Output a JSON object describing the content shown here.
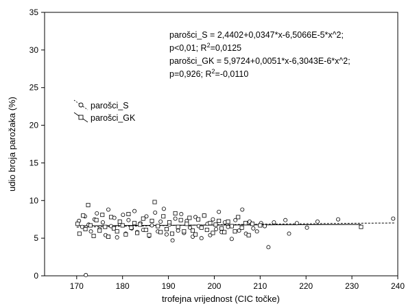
{
  "chart_data": {
    "type": "scatter",
    "title": "",
    "xlabel": "trofejna vrijednost (CIC točke)",
    "ylabel": "udio broja parožaka (%)",
    "xlim": [
      163,
      240
    ],
    "ylim": [
      0,
      35
    ],
    "x_ticks": [
      170,
      180,
      190,
      200,
      210,
      220,
      230,
      240
    ],
    "y_ticks": [
      0,
      5,
      10,
      15,
      20,
      25,
      30,
      35
    ],
    "grid": false,
    "legend_position": "upper-left",
    "annotation": {
      "line1": "parošci_S = 2,4402+0,0347*x-6,5066E-5*x^2;",
      "line2_pre": "p<0,01; R",
      "line2_sup": "2",
      "line2_post": "=0,0125",
      "line3": "parošci_GK = 5,9724+0,0051*x-6,3043E-6*x^2;",
      "line4_pre": "p=0,926; R",
      "line4_sup": "2",
      "line4_post": "=-0,0110"
    },
    "series": [
      {
        "name": "parošci_S",
        "marker": "circle",
        "line_style": "dashed",
        "fit": {
          "a": 2.4402,
          "b": 0.0347,
          "c": -6.5066e-05,
          "x_range": [
            170,
            239.5
          ]
        },
        "points": [
          [
            170.5,
            7.3
          ],
          [
            171.2,
            6.5
          ],
          [
            171.8,
            7.9
          ],
          [
            172.0,
            0.1
          ],
          [
            172.6,
            6.8
          ],
          [
            173.1,
            5.9
          ],
          [
            173.9,
            7.5
          ],
          [
            174.4,
            8.3
          ],
          [
            175.0,
            6.2
          ],
          [
            175.7,
            7.1
          ],
          [
            176.3,
            5.4
          ],
          [
            176.9,
            8.8
          ],
          [
            177.5,
            6.6
          ],
          [
            178.2,
            7.7
          ],
          [
            178.8,
            5.1
          ],
          [
            179.4,
            6.9
          ],
          [
            180.1,
            8.1
          ],
          [
            180.7,
            5.6
          ],
          [
            181.3,
            7.4
          ],
          [
            182.0,
            6.3
          ],
          [
            182.6,
            8.6
          ],
          [
            183.2,
            5.8
          ],
          [
            183.9,
            7.0
          ],
          [
            184.5,
            6.1
          ],
          [
            185.2,
            7.9
          ],
          [
            185.8,
            5.3
          ],
          [
            186.4,
            6.7
          ],
          [
            187.1,
            8.4
          ],
          [
            187.7,
            5.9
          ],
          [
            188.3,
            7.2
          ],
          [
            189.0,
            8.9
          ],
          [
            189.6,
            5.5
          ],
          [
            190.2,
            6.8
          ],
          [
            190.9,
            4.7
          ],
          [
            191.5,
            7.6
          ],
          [
            192.1,
            6.0
          ],
          [
            192.8,
            8.2
          ],
          [
            193.4,
            5.7
          ],
          [
            194.0,
            7.3
          ],
          [
            194.7,
            6.4
          ],
          [
            195.3,
            5.2
          ],
          [
            195.9,
            7.8
          ],
          [
            196.6,
            6.6
          ],
          [
            197.2,
            5.0
          ],
          [
            197.8,
            8.0
          ],
          [
            198.5,
            6.9
          ],
          [
            199.1,
            5.4
          ],
          [
            199.7,
            7.5
          ],
          [
            200.4,
            6.2
          ],
          [
            201.0,
            8.5
          ],
          [
            201.6,
            5.8
          ],
          [
            202.3,
            7.1
          ],
          [
            203.0,
            6.5
          ],
          [
            203.8,
            4.9
          ],
          [
            204.6,
            7.4
          ],
          [
            205.4,
            6.0
          ],
          [
            206.1,
            8.8
          ],
          [
            206.9,
            5.6
          ],
          [
            207.7,
            7.2
          ],
          [
            208.5,
            6.3
          ],
          [
            209.3,
            5.9
          ],
          [
            210.2,
            7.0
          ],
          [
            211.0,
            6.6
          ],
          [
            211.8,
            3.8
          ],
          [
            213.0,
            7.1
          ],
          [
            215.5,
            7.4
          ],
          [
            216.3,
            5.6
          ],
          [
            218.0,
            7.0
          ],
          [
            220.2,
            6.4
          ],
          [
            222.5,
            7.2
          ],
          [
            227.0,
            7.5
          ],
          [
            239.0,
            7.6
          ]
        ]
      },
      {
        "name": "parošci_GK",
        "marker": "square",
        "line_style": "solid",
        "fit": {
          "a": 5.9724,
          "b": 0.0051,
          "c": -6.3043e-06,
          "x_range": [
            170,
            232
          ]
        },
        "points": [
          [
            170.2,
            6.9
          ],
          [
            170.6,
            5.6
          ],
          [
            171.4,
            8.0
          ],
          [
            171.9,
            6.2
          ],
          [
            172.5,
            9.4
          ],
          [
            173.0,
            6.7
          ],
          [
            173.7,
            5.3
          ],
          [
            174.3,
            7.4
          ],
          [
            175.0,
            6.0
          ],
          [
            175.6,
            8.1
          ],
          [
            176.2,
            6.5
          ],
          [
            176.9,
            5.2
          ],
          [
            177.5,
            7.8
          ],
          [
            178.1,
            6.3
          ],
          [
            178.8,
            5.9
          ],
          [
            179.4,
            7.2
          ],
          [
            180.0,
            6.7
          ],
          [
            180.7,
            5.5
          ],
          [
            181.3,
            8.2
          ],
          [
            181.9,
            6.4
          ],
          [
            182.6,
            7.0
          ],
          [
            183.2,
            5.7
          ],
          [
            183.8,
            6.8
          ],
          [
            184.5,
            7.6
          ],
          [
            185.1,
            6.1
          ],
          [
            185.8,
            5.4
          ],
          [
            186.4,
            7.3
          ],
          [
            187.0,
            9.8
          ],
          [
            187.7,
            6.6
          ],
          [
            188.3,
            5.8
          ],
          [
            188.9,
            7.9
          ],
          [
            189.6,
            6.2
          ],
          [
            190.2,
            7.1
          ],
          [
            190.8,
            5.6
          ],
          [
            191.5,
            8.3
          ],
          [
            192.1,
            6.5
          ],
          [
            192.7,
            7.4
          ],
          [
            193.4,
            5.9
          ],
          [
            194.0,
            6.9
          ],
          [
            194.6,
            7.7
          ],
          [
            195.3,
            6.0
          ],
          [
            195.9,
            5.5
          ],
          [
            196.5,
            7.5
          ],
          [
            197.2,
            6.4
          ],
          [
            197.8,
            8.0
          ],
          [
            198.4,
            6.1
          ],
          [
            199.1,
            7.0
          ],
          [
            199.7,
            5.7
          ],
          [
            200.3,
            6.8
          ],
          [
            201.0,
            7.3
          ],
          [
            201.6,
            6.3
          ],
          [
            202.2,
            5.8
          ],
          [
            203.0,
            7.2
          ],
          [
            203.8,
            6.6
          ],
          [
            204.5,
            5.9
          ],
          [
            205.2,
            7.8
          ],
          [
            206.0,
            6.4
          ],
          [
            206.8,
            7.0
          ],
          [
            207.5,
            5.4
          ],
          [
            208.3,
            6.9
          ],
          [
            210.0,
            6.7
          ],
          [
            232.0,
            6.5
          ]
        ]
      }
    ]
  }
}
